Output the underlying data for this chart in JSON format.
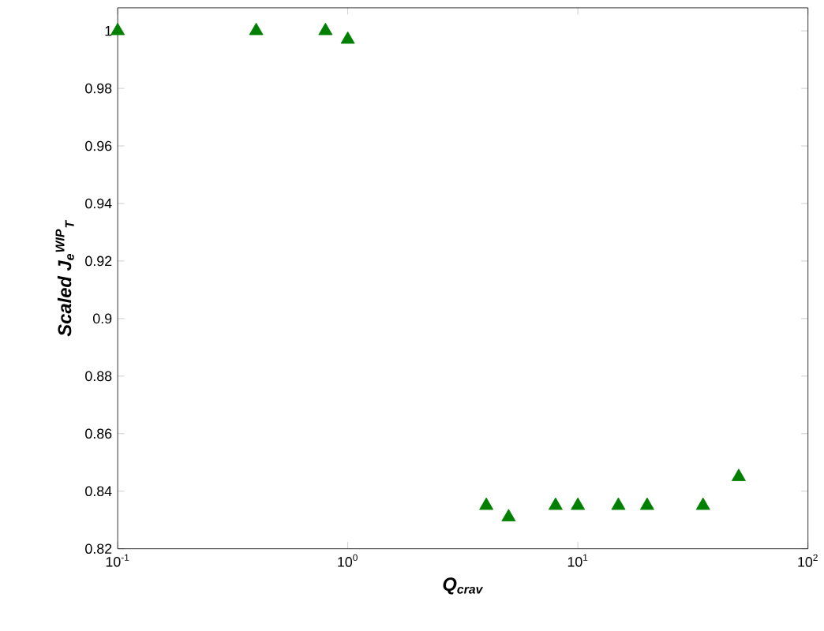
{
  "chart_data": {
    "type": "scatter",
    "xlabel": "Q$_{crav}$",
    "ylabel": "Scaled J$_{e}$$^{WIP}$$_{T}$",
    "x": [
      0.1,
      0.4,
      0.8,
      1.0,
      4,
      5,
      8,
      10,
      15,
      20,
      35,
      50
    ],
    "values": [
      1.0,
      1.0,
      1.0,
      0.997,
      0.835,
      0.831,
      0.835,
      0.835,
      0.835,
      0.835,
      0.835,
      0.845
    ],
    "color": "#007f00",
    "marker": "triangle",
    "log": "x",
    "xlim": [
      0.1,
      100
    ],
    "xticks": [
      {
        "value": 0.1,
        "label": "10$^{-1}$"
      },
      {
        "value": 1,
        "label": "10$^{0}$"
      },
      {
        "value": 10,
        "label": "10$^{1}$"
      },
      {
        "value": 100,
        "label": "10$^{2}$"
      }
    ],
    "ylim": [
      0.82,
      1.008
    ],
    "yticks": [
      0.82,
      0.84,
      0.86,
      0.88,
      0.9,
      0.92,
      0.94,
      0.96,
      0.98,
      1
    ]
  }
}
